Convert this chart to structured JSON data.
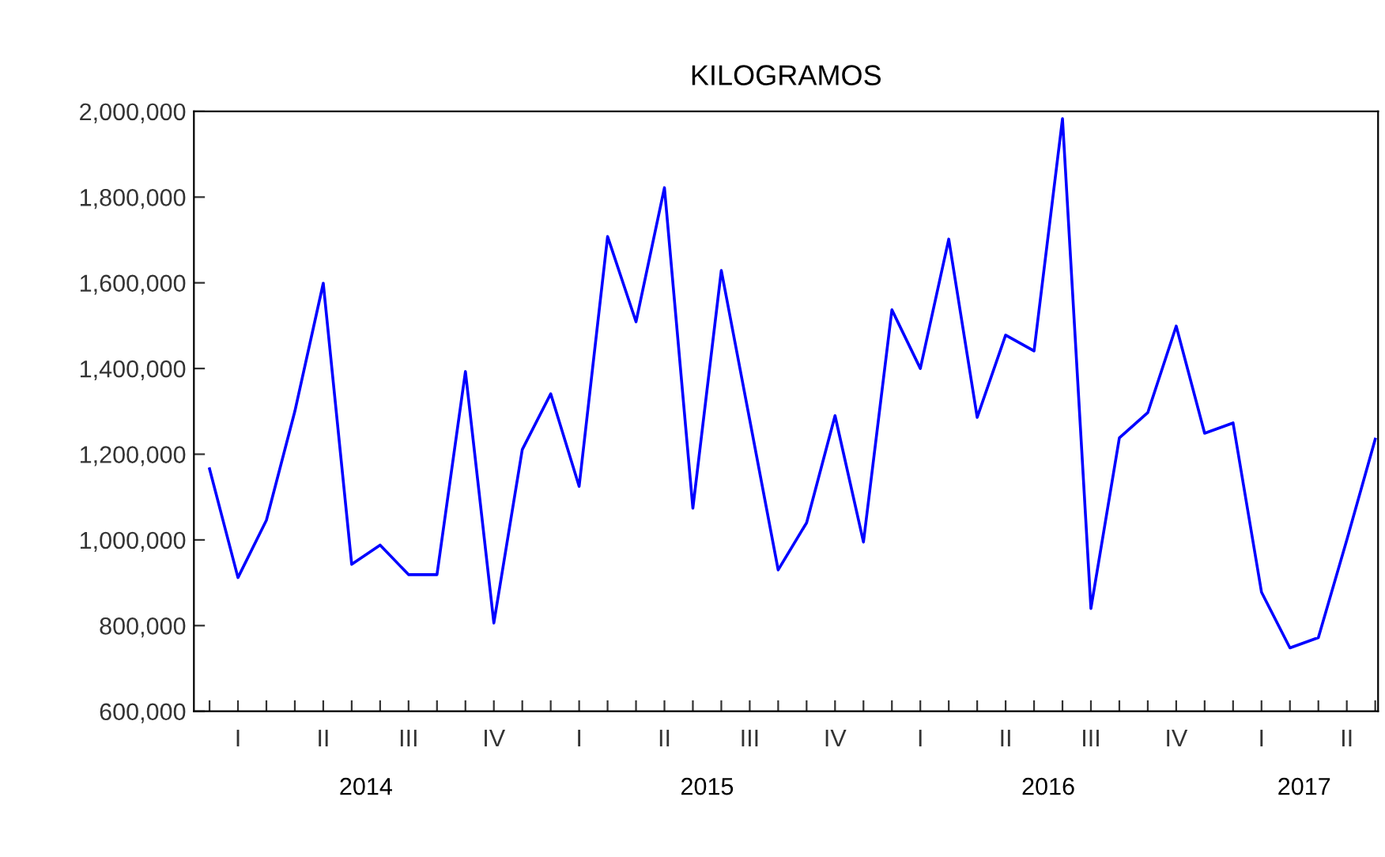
{
  "chart_data": {
    "type": "line",
    "title": "KILOGRAMOS",
    "categories": [
      null,
      "I",
      null,
      null,
      "II",
      null,
      null,
      "III",
      null,
      null,
      "IV",
      null,
      null,
      "I",
      null,
      null,
      "II",
      null,
      null,
      "III",
      null,
      null,
      "IV",
      null,
      null,
      "I",
      null,
      null,
      "II",
      null,
      null,
      "III",
      null,
      null,
      "IV",
      null,
      null,
      "I",
      null,
      null,
      "II",
      null
    ],
    "series": [
      {
        "color": "#0000ff",
        "values": [
          1166000,
          912000,
          1046000,
          1300000,
          1599000,
          943000,
          988000,
          919000,
          919000,
          1393000,
          806000,
          1211000,
          1341000,
          1125000,
          1708000,
          1509000,
          1822000,
          1074000,
          1629000,
          1280000,
          930000,
          1040000,
          1290000,
          995000,
          1537000,
          1400000,
          1702000,
          1286000,
          1478000,
          1441000,
          1983000,
          840000,
          1238000,
          1297000,
          1499000,
          1249000,
          1273000,
          878000,
          748000,
          772000,
          1000000,
          1235000
        ]
      }
    ],
    "ylim": [
      600000,
      2000000
    ],
    "yticks": [
      {
        "value": 600000,
        "label": "600,000"
      },
      {
        "value": 800000,
        "label": "800,000"
      },
      {
        "value": 1000000,
        "label": "1,000,000"
      },
      {
        "value": 1200000,
        "label": "1,200,000"
      },
      {
        "value": 1400000,
        "label": "1,400,000"
      },
      {
        "value": 1600000,
        "label": "1,600,000"
      },
      {
        "value": 1800000,
        "label": "1,800,000"
      },
      {
        "value": 2000000,
        "label": "2,000,000"
      }
    ],
    "annotations": [
      "2014",
      "2015",
      "2016",
      "2017"
    ],
    "grid": false,
    "legend": false,
    "marker": "none",
    "line_style": "solid"
  }
}
